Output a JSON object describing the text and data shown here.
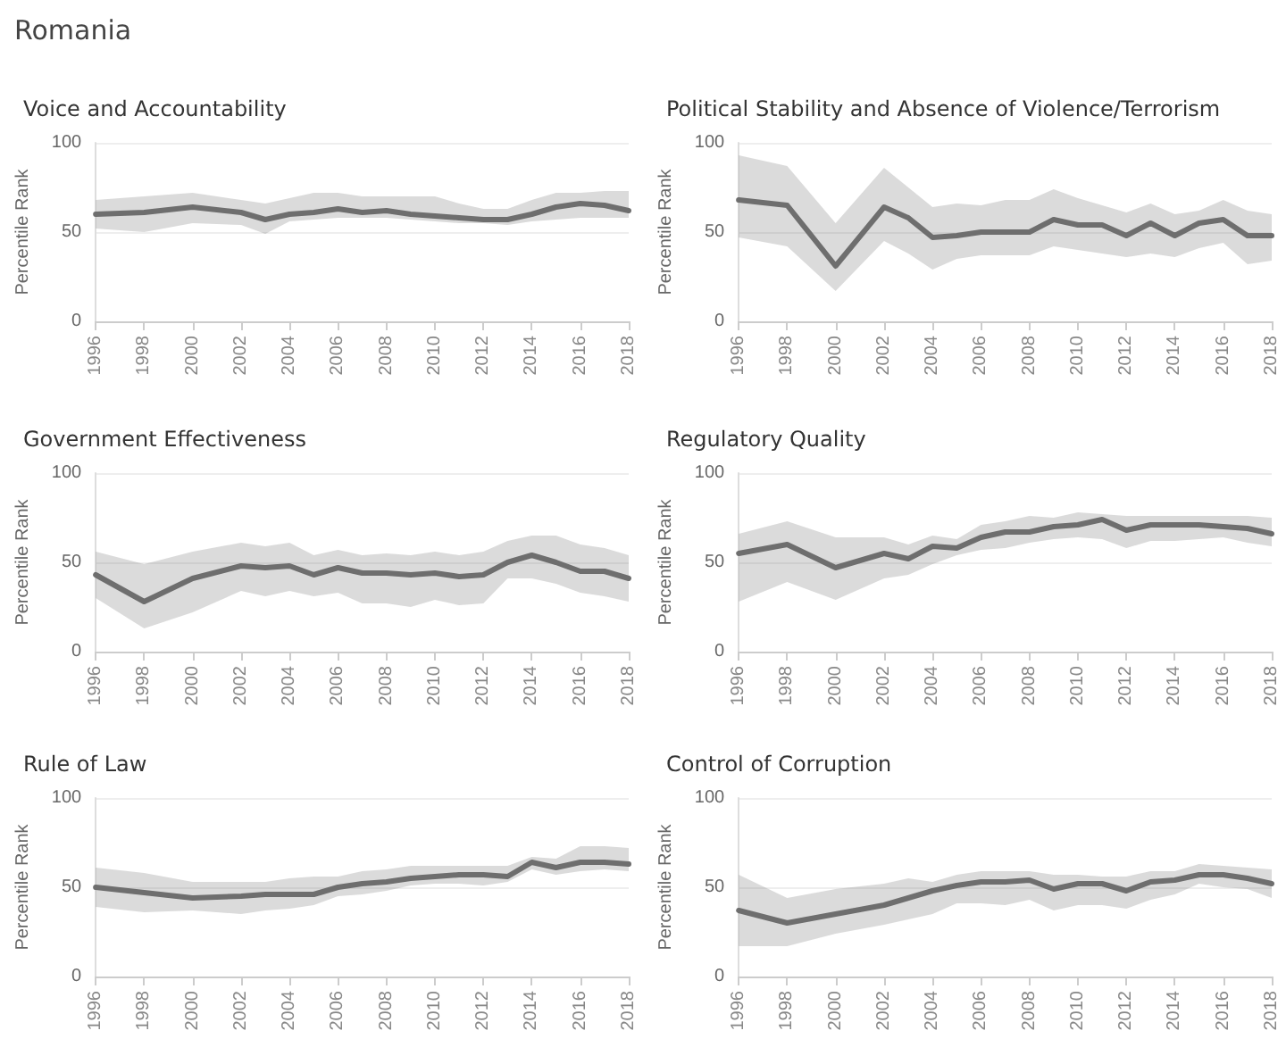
{
  "chart_data": [
    {
      "type": "line",
      "title": "Voice and Accountability",
      "ylabel": "Percentile Rank",
      "annotations": [
        "Romania"
      ],
      "x": [
        1996,
        1998,
        2000,
        2002,
        2003,
        2004,
        2005,
        2006,
        2007,
        2008,
        2009,
        2010,
        2011,
        2012,
        2013,
        2014,
        2015,
        2016,
        2017,
        2018
      ],
      "xlim": [
        1996,
        2018
      ],
      "xticks": [
        1996,
        1998,
        2000,
        2002,
        2004,
        2006,
        2008,
        2010,
        2012,
        2014,
        2016,
        2018
      ],
      "ylim": [
        0,
        100
      ],
      "yticks": [
        0,
        50,
        100
      ],
      "grid": "y",
      "marker": "none",
      "series": [
        {
          "color": "#6e6e6e",
          "values": [
            60,
            61,
            64,
            61,
            57,
            60,
            61,
            63,
            61,
            62,
            60,
            59,
            58,
            57,
            57,
            60,
            64,
            66,
            65,
            62
          ],
          "lower": [
            52,
            50,
            55,
            54,
            49,
            56,
            57,
            58,
            58,
            58,
            57,
            56,
            55,
            55,
            54,
            56,
            57,
            58,
            58,
            58
          ],
          "upper": [
            68,
            70,
            72,
            68,
            66,
            69,
            72,
            72,
            70,
            70,
            70,
            70,
            66,
            63,
            63,
            68,
            72,
            72,
            73,
            73
          ]
        }
      ]
    },
    {
      "type": "line",
      "title": "Political Stability and Absence of Violence/Terrorism",
      "ylabel": "Percentile Rank",
      "x": [
        1996,
        1998,
        2000,
        2002,
        2003,
        2004,
        2005,
        2006,
        2007,
        2008,
        2009,
        2010,
        2011,
        2012,
        2013,
        2014,
        2015,
        2016,
        2017,
        2018
      ],
      "xlim": [
        1996,
        2018
      ],
      "xticks": [
        1996,
        1998,
        2000,
        2002,
        2004,
        2006,
        2008,
        2010,
        2012,
        2014,
        2016,
        2018
      ],
      "ylim": [
        0,
        100
      ],
      "yticks": [
        0,
        50,
        100
      ],
      "grid": "y",
      "marker": "none",
      "series": [
        {
          "color": "#6e6e6e",
          "values": [
            68,
            65,
            31,
            64,
            58,
            47,
            48,
            50,
            50,
            50,
            57,
            54,
            54,
            48,
            55,
            48,
            55,
            57,
            48,
            48
          ],
          "lower": [
            47,
            42,
            17,
            45,
            38,
            29,
            35,
            37,
            37,
            37,
            42,
            40,
            38,
            36,
            38,
            36,
            41,
            44,
            32,
            34
          ],
          "upper": [
            93,
            87,
            55,
            86,
            75,
            64,
            66,
            65,
            68,
            68,
            74,
            69,
            65,
            61,
            66,
            60,
            62,
            68,
            62,
            60
          ]
        }
      ]
    },
    {
      "type": "line",
      "title": "Government Effectiveness",
      "ylabel": "Percentile Rank",
      "x": [
        1996,
        1998,
        2000,
        2002,
        2003,
        2004,
        2005,
        2006,
        2007,
        2008,
        2009,
        2010,
        2011,
        2012,
        2013,
        2014,
        2015,
        2016,
        2017,
        2018
      ],
      "xlim": [
        1996,
        2018
      ],
      "xticks": [
        1996,
        1998,
        2000,
        2002,
        2004,
        2006,
        2008,
        2010,
        2012,
        2014,
        2016,
        2018
      ],
      "ylim": [
        0,
        100
      ],
      "yticks": [
        0,
        50,
        100
      ],
      "grid": "y",
      "marker": "none",
      "series": [
        {
          "color": "#6e6e6e",
          "values": [
            43,
            28,
            41,
            48,
            47,
            48,
            43,
            47,
            44,
            44,
            43,
            44,
            42,
            43,
            50,
            54,
            50,
            45,
            45,
            41
          ],
          "lower": [
            30,
            13,
            22,
            34,
            31,
            34,
            31,
            33,
            27,
            27,
            25,
            29,
            26,
            27,
            41,
            41,
            38,
            33,
            31,
            28
          ],
          "upper": [
            56,
            49,
            56,
            61,
            59,
            61,
            54,
            57,
            54,
            55,
            54,
            56,
            54,
            56,
            62,
            65,
            65,
            60,
            58,
            54
          ]
        }
      ]
    },
    {
      "type": "line",
      "title": "Regulatory Quality",
      "ylabel": "Percentile Rank",
      "x": [
        1996,
        1998,
        2000,
        2002,
        2003,
        2004,
        2005,
        2006,
        2007,
        2008,
        2009,
        2010,
        2011,
        2012,
        2013,
        2014,
        2015,
        2016,
        2017,
        2018
      ],
      "xlim": [
        1996,
        2018
      ],
      "xticks": [
        1996,
        1998,
        2000,
        2002,
        2004,
        2006,
        2008,
        2010,
        2012,
        2014,
        2016,
        2018
      ],
      "ylim": [
        0,
        100
      ],
      "yticks": [
        0,
        50,
        100
      ],
      "grid": "y",
      "marker": "none",
      "series": [
        {
          "color": "#6e6e6e",
          "values": [
            55,
            60,
            47,
            55,
            52,
            59,
            58,
            64,
            67,
            67,
            70,
            71,
            74,
            68,
            71,
            71,
            71,
            70,
            69,
            66
          ],
          "lower": [
            28,
            39,
            29,
            41,
            43,
            49,
            54,
            57,
            58,
            61,
            63,
            64,
            63,
            58,
            62,
            62,
            63,
            64,
            61,
            59
          ],
          "upper": [
            66,
            73,
            64,
            64,
            60,
            65,
            63,
            71,
            73,
            76,
            75,
            78,
            77,
            76,
            76,
            76,
            76,
            76,
            76,
            75
          ]
        }
      ]
    },
    {
      "type": "line",
      "title": "Rule of Law",
      "ylabel": "Percentile Rank",
      "x": [
        1996,
        1998,
        2000,
        2002,
        2003,
        2004,
        2005,
        2006,
        2007,
        2008,
        2009,
        2010,
        2011,
        2012,
        2013,
        2014,
        2015,
        2016,
        2017,
        2018
      ],
      "xlim": [
        1996,
        2018
      ],
      "xticks": [
        1996,
        1998,
        2000,
        2002,
        2004,
        2006,
        2008,
        2010,
        2012,
        2014,
        2016,
        2018
      ],
      "ylim": [
        0,
        100
      ],
      "yticks": [
        0,
        50,
        100
      ],
      "grid": "y",
      "marker": "none",
      "series": [
        {
          "color": "#6e6e6e",
          "values": [
            50,
            47,
            44,
            45,
            46,
            46,
            46,
            50,
            52,
            53,
            55,
            56,
            57,
            57,
            56,
            64,
            61,
            64,
            64,
            63
          ],
          "lower": [
            39,
            36,
            37,
            35,
            37,
            38,
            40,
            45,
            46,
            48,
            51,
            52,
            52,
            51,
            53,
            60,
            57,
            59,
            60,
            59
          ],
          "upper": [
            61,
            58,
            53,
            53,
            53,
            55,
            56,
            56,
            59,
            60,
            62,
            62,
            62,
            62,
            62,
            67,
            66,
            73,
            73,
            72
          ]
        }
      ]
    },
    {
      "type": "line",
      "title": "Control of Corruption",
      "ylabel": "Percentile Rank",
      "x": [
        1996,
        1998,
        2000,
        2002,
        2003,
        2004,
        2005,
        2006,
        2007,
        2008,
        2009,
        2010,
        2011,
        2012,
        2013,
        2014,
        2015,
        2016,
        2017,
        2018
      ],
      "xlim": [
        1996,
        2018
      ],
      "xticks": [
        1996,
        1998,
        2000,
        2002,
        2004,
        2006,
        2008,
        2010,
        2012,
        2014,
        2016,
        2018
      ],
      "ylim": [
        0,
        100
      ],
      "yticks": [
        0,
        50,
        100
      ],
      "grid": "y",
      "marker": "none",
      "series": [
        {
          "color": "#6e6e6e",
          "values": [
            37,
            30,
            35,
            40,
            44,
            48,
            51,
            53,
            53,
            54,
            49,
            52,
            52,
            48,
            53,
            54,
            57,
            57,
            55,
            52
          ],
          "lower": [
            17,
            17,
            24,
            29,
            32,
            35,
            41,
            41,
            40,
            43,
            37,
            40,
            40,
            38,
            43,
            46,
            52,
            50,
            49,
            44
          ],
          "upper": [
            57,
            44,
            49,
            52,
            55,
            53,
            57,
            59,
            59,
            59,
            57,
            57,
            56,
            56,
            59,
            59,
            63,
            62,
            61,
            60
          ]
        }
      ]
    }
  ]
}
